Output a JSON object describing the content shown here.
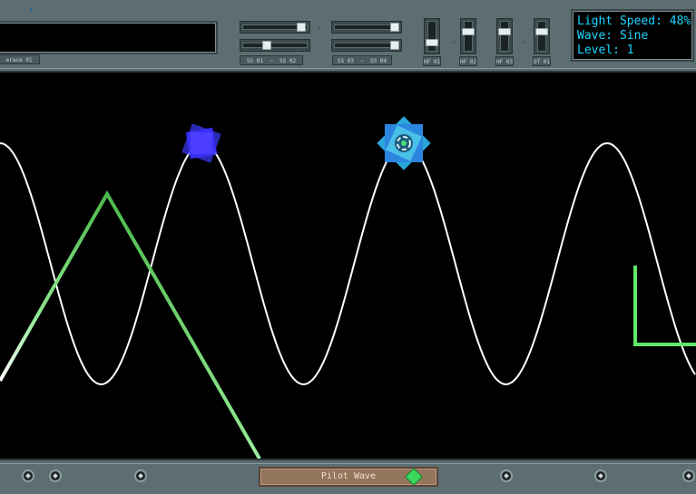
{
  "top_panel": {
    "interface_tag": "erace 01",
    "slider_groups": [
      {
        "label_left": "SS 01",
        "label_right": "SS 02",
        "levels": [
          0.85,
          0.38
        ]
      },
      {
        "label_left": "SS 03",
        "label_right": "SS 04",
        "levels": [
          0.88,
          0.88
        ]
      }
    ],
    "vertical_sliders": [
      {
        "label": "HF 01",
        "level": 0.25
      },
      {
        "label": "HF 02",
        "level": 0.7
      },
      {
        "label": "HF 03",
        "level": 0.7
      },
      {
        "label": "DT 01",
        "level": 0.7
      }
    ]
  },
  "readout": {
    "light_speed_label": "Light Speed: 48%",
    "wave_label": "Wave: Sine",
    "level_label": "Level: 1"
  },
  "bottom_panel": {
    "pilot_label": "Pilot Wave"
  },
  "colors": {
    "panel": "#5d6e72",
    "readout_text": "#19d6ff",
    "sine_wave": "#ffffff",
    "pilot_green": "#5fe86a",
    "player_blue": "#2f8fe0",
    "enemy_blue": "#3a3cff"
  },
  "icons": {
    "player": "star-ship-icon",
    "enemy": "square-block-icon",
    "pilot_indicator": "green-diamond-icon",
    "screw": "screw-icon"
  }
}
